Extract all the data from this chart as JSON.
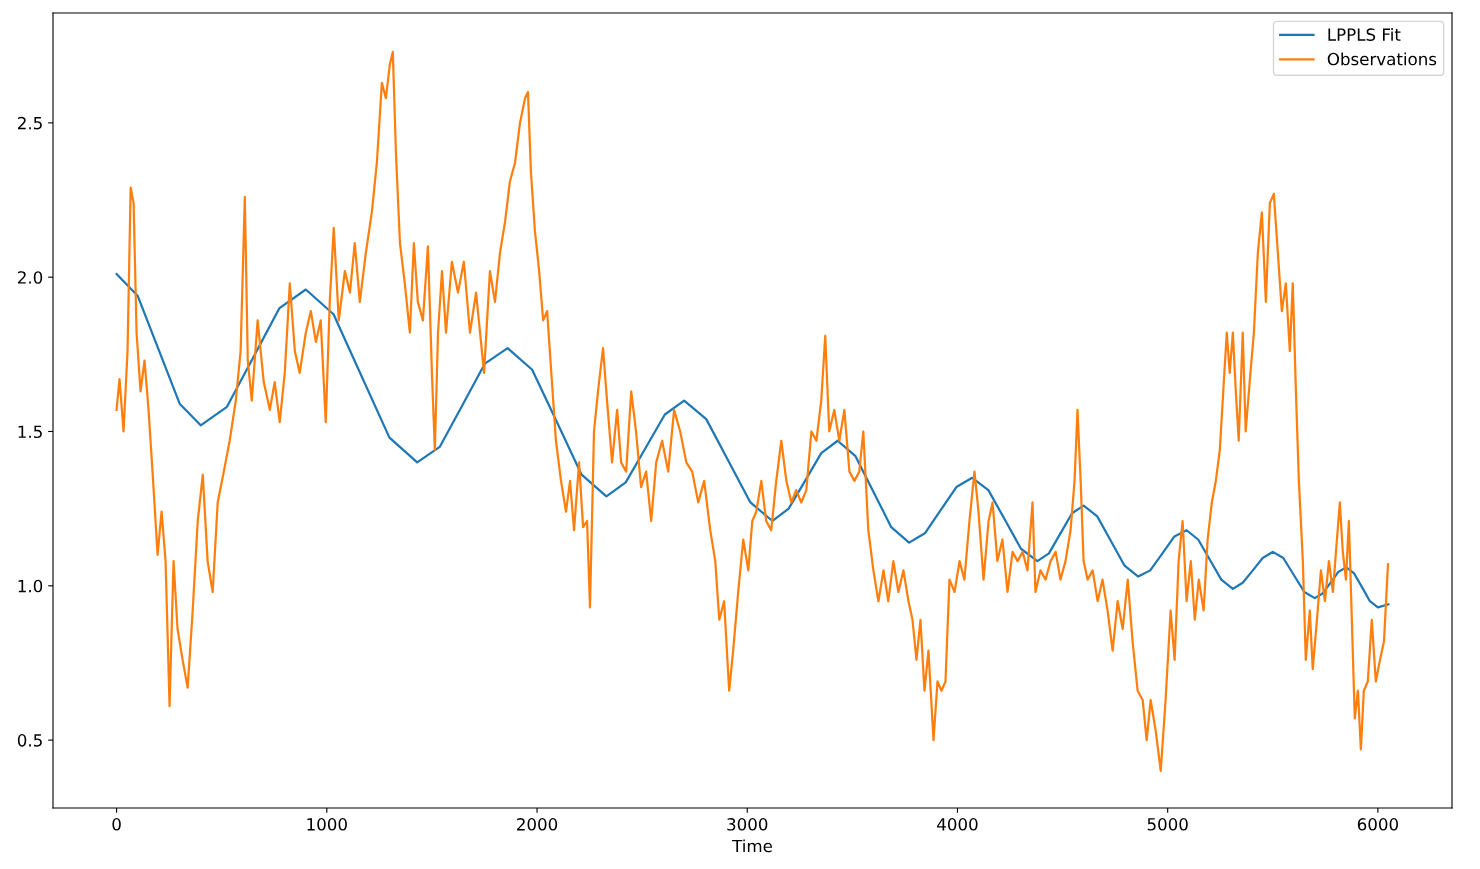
{
  "chart_data": {
    "type": "line",
    "xlabel": "Time",
    "xlim": [
      -302.5,
      6352.5
    ],
    "ylim": [
      0.28,
      2.856
    ],
    "xticks": [
      0,
      1000,
      2000,
      3000,
      4000,
      5000,
      6000
    ],
    "yticks": [
      0.5,
      {
        "value": 1,
        "label": "1.0"
      },
      1.5,
      {
        "value": 2,
        "label": "2.0"
      },
      2.5
    ],
    "grid": false,
    "legend": "top right",
    "line_style": "solid",
    "marker": "none",
    "series": [
      {
        "name": "LPPLS Fit",
        "color": "#1f77b4",
        "x": [
          0,
          100,
          200,
          300,
          400,
          525,
          650,
          775,
          900,
          1032,
          1165,
          1298,
          1430,
          1537,
          1645,
          1752,
          1860,
          1977,
          2095,
          2212,
          2330,
          2422,
          2515,
          2608,
          2700,
          2805,
          2910,
          3015,
          3120,
          3197,
          3275,
          3352,
          3430,
          3515,
          3600,
          3685,
          3770,
          3845,
          3920,
          3995,
          4070,
          4147,
          4225,
          4302,
          4380,
          4435,
          4490,
          4545,
          4600,
          4665,
          4730,
          4795,
          4860,
          4917,
          4975,
          5032,
          5090,
          5145,
          5200,
          5255,
          5310,
          5357,
          5405,
          5452,
          5500,
          5550,
          5600,
          5650,
          5700,
          5737,
          5775,
          5812,
          5850,
          5887,
          5925,
          5962,
          6000,
          6050
        ],
        "values": [
          2.01,
          1.94,
          1.765,
          1.59,
          1.52,
          1.58,
          1.74,
          1.9,
          1.96,
          1.88,
          1.68,
          1.48,
          1.4,
          1.45,
          1.585,
          1.72,
          1.77,
          1.7,
          1.53,
          1.36,
          1.29,
          1.335,
          1.445,
          1.555,
          1.6,
          1.54,
          1.405,
          1.27,
          1.21,
          1.25,
          1.34,
          1.43,
          1.47,
          1.42,
          1.305,
          1.19,
          1.14,
          1.17,
          1.245,
          1.32,
          1.35,
          1.31,
          1.215,
          1.12,
          1.08,
          1.105,
          1.17,
          1.235,
          1.26,
          1.225,
          1.145,
          1.065,
          1.03,
          1.05,
          1.105,
          1.16,
          1.18,
          1.15,
          1.085,
          1.02,
          0.99,
          1.01,
          1.05,
          1.09,
          1.11,
          1.09,
          1.035,
          0.98,
          0.96,
          0.975,
          1.01,
          1.045,
          1.06,
          1.04,
          0.995,
          0.95,
          0.93,
          0.94
        ]
      },
      {
        "name": "Observations",
        "color": "#ff7f0e",
        "x": [
          0,
          14,
          33,
          52,
          67,
          81,
          95,
          114,
          133,
          152,
          171,
          195,
          214,
          233,
          252,
          271,
          290,
          314,
          338,
          362,
          386,
          410,
          433,
          457,
          481,
          510,
          538,
          567,
          590,
          610,
          624,
          643,
          671,
          700,
          729,
          752,
          776,
          800,
          824,
          848,
          871,
          900,
          924,
          948,
          971,
          995,
          1014,
          1033,
          1057,
          1086,
          1110,
          1133,
          1157,
          1186,
          1214,
          1238,
          1262,
          1281,
          1300,
          1314,
          1329,
          1348,
          1371,
          1395,
          1414,
          1433,
          1457,
          1481,
          1500,
          1514,
          1529,
          1548,
          1567,
          1595,
          1624,
          1652,
          1681,
          1710,
          1729,
          1748,
          1776,
          1800,
          1824,
          1848,
          1871,
          1895,
          1919,
          1943,
          1957,
          1971,
          1990,
          2010,
          2029,
          2048,
          2071,
          2090,
          2114,
          2138,
          2157,
          2176,
          2200,
          2219,
          2238,
          2252,
          2271,
          2290,
          2314,
          2333,
          2357,
          2381,
          2400,
          2424,
          2448,
          2471,
          2495,
          2519,
          2543,
          2567,
          2595,
          2624,
          2652,
          2681,
          2710,
          2738,
          2767,
          2795,
          2824,
          2848,
          2867,
          2890,
          2914,
          2933,
          2957,
          2981,
          3005,
          3024,
          3043,
          3067,
          3090,
          3114,
          3138,
          3162,
          3186,
          3210,
          3233,
          3257,
          3281,
          3305,
          3329,
          3352,
          3371,
          3390,
          3414,
          3438,
          3462,
          3486,
          3510,
          3533,
          3552,
          3576,
          3600,
          3624,
          3648,
          3671,
          3695,
          3719,
          3743,
          3767,
          3786,
          3805,
          3824,
          3843,
          3862,
          3886,
          3905,
          3924,
          3943,
          3962,
          3986,
          4010,
          4033,
          4057,
          4081,
          4100,
          4124,
          4148,
          4167,
          4190,
          4214,
          4238,
          4262,
          4286,
          4310,
          4333,
          4357,
          4371,
          4395,
          4419,
          4443,
          4467,
          4490,
          4514,
          4538,
          4557,
          4571,
          4586,
          4600,
          4619,
          4643,
          4667,
          4690,
          4714,
          4738,
          4762,
          4786,
          4810,
          4833,
          4857,
          4881,
          4900,
          4919,
          4943,
          4967,
          4990,
          5014,
          5033,
          5052,
          5071,
          5090,
          5110,
          5129,
          5148,
          5171,
          5190,
          5210,
          5229,
          5248,
          5267,
          5281,
          5295,
          5310,
          5324,
          5338,
          5357,
          5371,
          5390,
          5410,
          5429,
          5448,
          5467,
          5486,
          5505,
          5524,
          5543,
          5562,
          5581,
          5595,
          5610,
          5624,
          5643,
          5657,
          5676,
          5690,
          5710,
          5729,
          5748,
          5767,
          5786,
          5805,
          5819,
          5833,
          5848,
          5862,
          5876,
          5890,
          5905,
          5919,
          5933,
          5952,
          5971,
          5990,
          6010,
          6029,
          6048
        ],
        "values": [
          1.57,
          1.67,
          1.5,
          1.76,
          2.29,
          2.24,
          1.82,
          1.63,
          1.73,
          1.57,
          1.37,
          1.1,
          1.24,
          1.08,
          0.61,
          1.08,
          0.86,
          0.76,
          0.67,
          0.92,
          1.21,
          1.36,
          1.08,
          0.98,
          1.27,
          1.37,
          1.47,
          1.6,
          1.76,
          2.26,
          1.73,
          1.6,
          1.86,
          1.66,
          1.57,
          1.66,
          1.53,
          1.69,
          1.98,
          1.76,
          1.69,
          1.82,
          1.89,
          1.79,
          1.86,
          1.53,
          1.92,
          2.16,
          1.86,
          2.02,
          1.95,
          2.11,
          1.92,
          2.08,
          2.21,
          2.37,
          2.63,
          2.58,
          2.69,
          2.73,
          2.4,
          2.11,
          1.98,
          1.82,
          2.11,
          1.92,
          1.86,
          2.1,
          1.69,
          1.44,
          1.82,
          2.02,
          1.82,
          2.05,
          1.95,
          2.05,
          1.82,
          1.95,
          1.82,
          1.69,
          2.02,
          1.92,
          2.08,
          2.18,
          2.31,
          2.37,
          2.5,
          2.58,
          2.6,
          2.34,
          2.15,
          2.02,
          1.86,
          1.89,
          1.66,
          1.47,
          1.34,
          1.24,
          1.34,
          1.18,
          1.4,
          1.19,
          1.21,
          0.93,
          1.5,
          1.63,
          1.77,
          1.6,
          1.4,
          1.57,
          1.4,
          1.37,
          1.63,
          1.5,
          1.32,
          1.37,
          1.21,
          1.4,
          1.47,
          1.37,
          1.57,
          1.5,
          1.4,
          1.37,
          1.27,
          1.34,
          1.18,
          1.08,
          0.89,
          0.95,
          0.66,
          0.79,
          0.98,
          1.15,
          1.05,
          1.21,
          1.24,
          1.34,
          1.21,
          1.18,
          1.34,
          1.47,
          1.34,
          1.27,
          1.31,
          1.27,
          1.31,
          1.5,
          1.47,
          1.6,
          1.81,
          1.5,
          1.57,
          1.47,
          1.57,
          1.37,
          1.34,
          1.37,
          1.5,
          1.18,
          1.05,
          0.95,
          1.05,
          0.95,
          1.08,
          0.98,
          1.05,
          0.95,
          0.89,
          0.76,
          0.89,
          0.66,
          0.79,
          0.5,
          0.69,
          0.66,
          0.69,
          1.02,
          0.98,
          1.08,
          1.02,
          1.21,
          1.37,
          1.24,
          1.02,
          1.21,
          1.27,
          1.08,
          1.15,
          0.98,
          1.11,
          1.08,
          1.11,
          1.05,
          1.27,
          0.98,
          1.05,
          1.02,
          1.08,
          1.11,
          1.02,
          1.08,
          1.18,
          1.34,
          1.57,
          1.34,
          1.08,
          1.02,
          1.05,
          0.95,
          1.02,
          0.92,
          0.79,
          0.95,
          0.86,
          1.02,
          0.82,
          0.66,
          0.63,
          0.5,
          0.63,
          0.53,
          0.4,
          0.63,
          0.92,
          0.76,
          1.08,
          1.21,
          0.95,
          1.08,
          0.89,
          1.02,
          0.92,
          1.15,
          1.27,
          1.34,
          1.44,
          1.66,
          1.82,
          1.69,
          1.82,
          1.63,
          1.47,
          1.82,
          1.5,
          1.66,
          1.82,
          2.08,
          2.21,
          1.92,
          2.24,
          2.27,
          2.08,
          1.89,
          1.98,
          1.76,
          1.98,
          1.63,
          1.34,
          1.08,
          0.76,
          0.92,
          0.73,
          0.89,
          1.05,
          0.95,
          1.08,
          0.98,
          1.15,
          1.27,
          1.11,
          1.02,
          1.21,
          0.89,
          0.57,
          0.66,
          0.47,
          0.66,
          0.69,
          0.89,
          0.69,
          0.76,
          0.82,
          1.07
        ]
      }
    ]
  }
}
